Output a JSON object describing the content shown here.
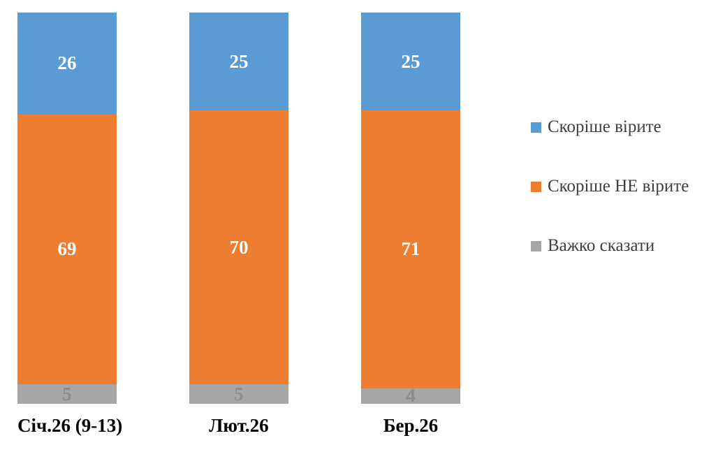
{
  "chart_data": {
    "type": "bar",
    "stacked": true,
    "orientation": "vertical",
    "categories": [
      "Січ.26 (9-13)",
      "Лют.26",
      "Бер.26"
    ],
    "series": [
      {
        "name": "Скоріше вірите",
        "color": "#5B9BD5",
        "label_color": "#ffffff",
        "values": [
          26,
          25,
          25
        ]
      },
      {
        "name": "Скоріше НЕ вірите",
        "color": "#ED7D31",
        "label_color": "#ffffff",
        "values": [
          69,
          70,
          71
        ]
      },
      {
        "name": "Важко сказати",
        "color": "#A6A6A6",
        "label_color": "#8C8C8C",
        "values": [
          5,
          5,
          4
        ]
      }
    ],
    "ylim": [
      0,
      100
    ],
    "grid": false,
    "legend_position": "right",
    "title": "",
    "xlabel": "",
    "ylabel": ""
  }
}
